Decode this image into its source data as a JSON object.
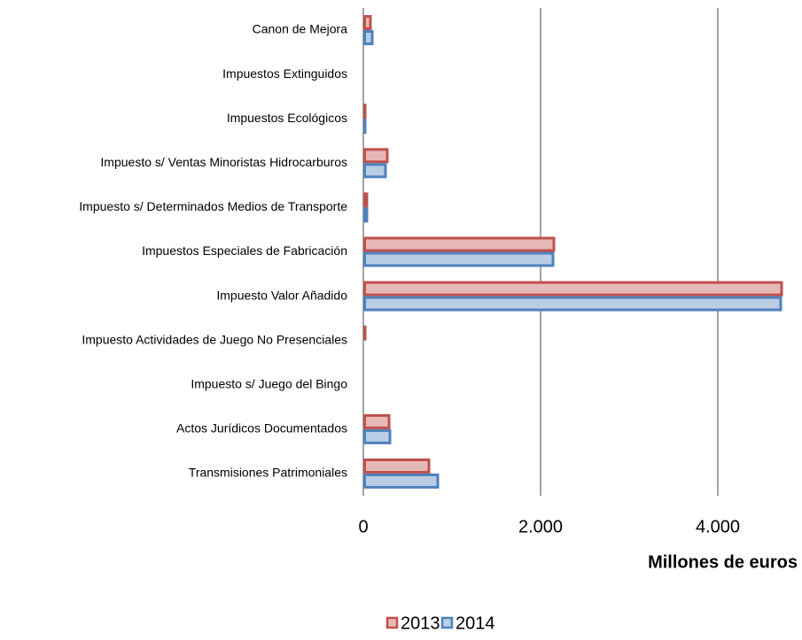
{
  "chart_data": {
    "type": "barh",
    "xlabel": "Millones de euros",
    "categories": [
      "Canon de Mejora",
      "Impuestos Extinguidos",
      "Impuestos Ecológicos",
      "Impuesto s/ Ventas Minoristas Hidrocarburos",
      "Impuesto s/ Determinados Medios de Transporte",
      "Impuestos Especiales de Fabricación",
      "Impuesto Valor Añadido",
      "Impuesto Actividades de Juego No Presenciales",
      "Impuesto s/ Juego del Bingo",
      "Actos Jurídicos Documentados",
      "Transmisiones Patrimoniales"
    ],
    "series": [
      {
        "name": "2013",
        "color": "#c0504d",
        "fill": "#e6b9b8",
        "values": [
          80,
          0,
          20,
          270,
          40,
          2150,
          4720,
          20,
          10,
          290,
          740
        ]
      },
      {
        "name": "2014",
        "color": "#4f81bd",
        "fill": "#b9cde5",
        "values": [
          100,
          0,
          20,
          250,
          40,
          2140,
          4710,
          15,
          10,
          300,
          840
        ]
      }
    ],
    "xlim": [
      0,
      4750
    ],
    "xticks": [
      0,
      {
        "value": 2000,
        "label": "2.000"
      },
      {
        "value": 4000,
        "label": "4.000"
      }
    ],
    "grid": true,
    "legend": "bottom"
  }
}
